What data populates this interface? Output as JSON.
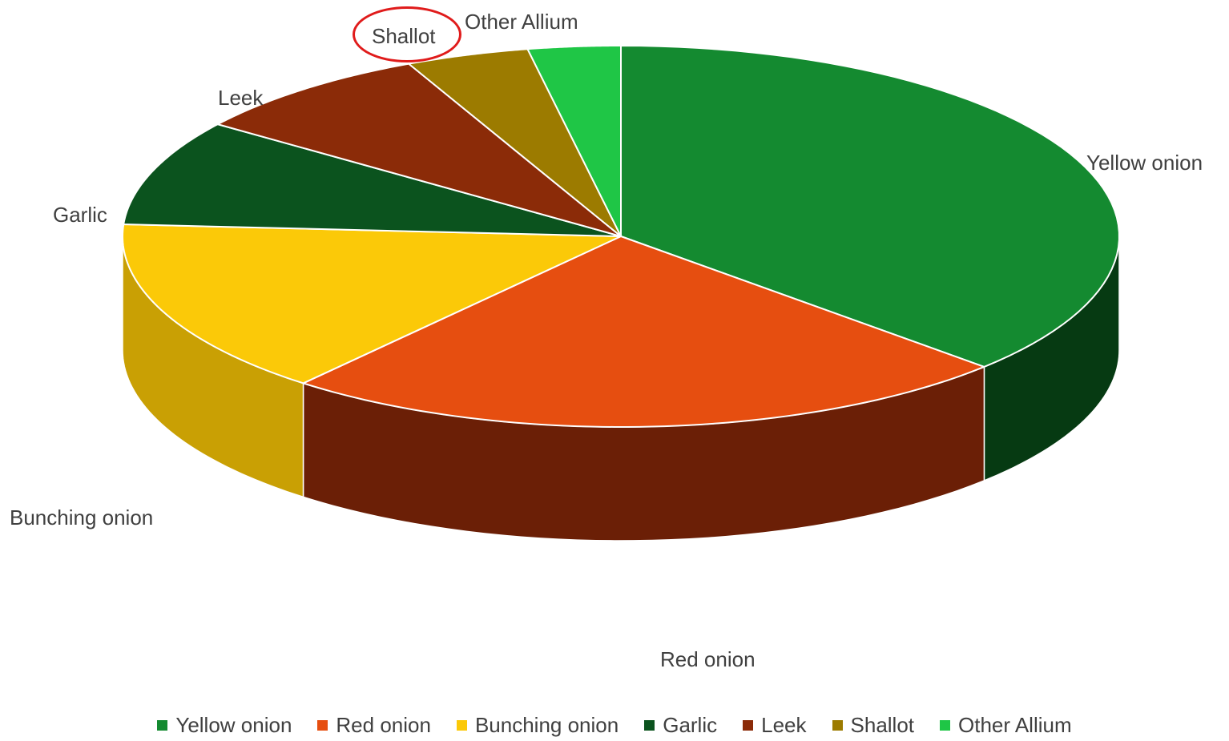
{
  "chart_data": {
    "type": "pie",
    "style": "3d",
    "title": "",
    "categories": [
      "Yellow onion",
      "Red onion",
      "Bunching onion",
      "Garlic",
      "Leek",
      "Shallot",
      "Other Allium"
    ],
    "values": [
      37,
      24,
      15,
      9,
      8,
      4,
      3
    ],
    "colors": [
      "#148a30",
      "#e64e10",
      "#fbc908",
      "#0b531e",
      "#8b2b08",
      "#9c7b00",
      "#1fc646"
    ],
    "side_colors": [
      "#063a12",
      "#6b1f06",
      "#c9a004",
      "#06330f",
      "#5e1d05",
      "#6e5700",
      "#119a31"
    ],
    "labels_position": "outside",
    "legend": "bottom",
    "annotation": {
      "circled_label": "Shallot",
      "circle_color": "#e01b1b"
    }
  }
}
